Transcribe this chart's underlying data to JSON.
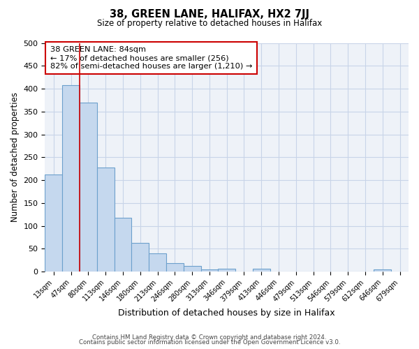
{
  "title": "38, GREEN LANE, HALIFAX, HX2 7JJ",
  "subtitle": "Size of property relative to detached houses in Halifax",
  "xlabel": "Distribution of detached houses by size in Halifax",
  "ylabel": "Number of detached properties",
  "bin_labels": [
    "13sqm",
    "47sqm",
    "80sqm",
    "113sqm",
    "146sqm",
    "180sqm",
    "213sqm",
    "246sqm",
    "280sqm",
    "313sqm",
    "346sqm",
    "379sqm",
    "413sqm",
    "446sqm",
    "479sqm",
    "513sqm",
    "546sqm",
    "579sqm",
    "612sqm",
    "646sqm",
    "679sqm"
  ],
  "bar_heights": [
    213,
    407,
    370,
    228,
    118,
    63,
    40,
    18,
    13,
    5,
    6,
    0,
    6,
    0,
    0,
    0,
    0,
    0,
    0,
    5,
    0
  ],
  "bar_color": "#c5d8ee",
  "bar_edge_color": "#6ca0cc",
  "ylim": [
    0,
    500
  ],
  "yticks": [
    0,
    50,
    100,
    150,
    200,
    250,
    300,
    350,
    400,
    450,
    500
  ],
  "vline_x": 1.5,
  "vline_color": "#cc0000",
  "annotation_title": "38 GREEN LANE: 84sqm",
  "annotation_line1": "← 17% of detached houses are smaller (256)",
  "annotation_line2": "82% of semi-detached houses are larger (1,210) →",
  "annotation_box_color": "#ffffff",
  "annotation_box_edge": "#cc0000",
  "footer1": "Contains HM Land Registry data © Crown copyright and database right 2024.",
  "footer2": "Contains public sector information licensed under the Open Government Licence v3.0.",
  "background_color": "#ffffff",
  "plot_bg_color": "#eef2f8",
  "grid_color": "#c8d4e8"
}
